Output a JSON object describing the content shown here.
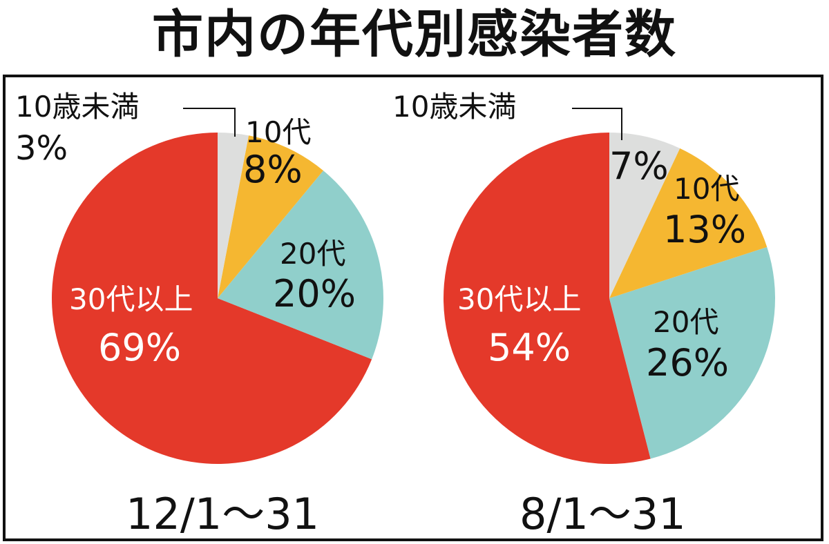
{
  "title": "市内の年代別感染者数",
  "colors": {
    "under10": "#dddedd",
    "teens": "#f5b731",
    "twenties": "#90cfcb",
    "thirties_plus": "#e4392a"
  },
  "chart_data": [
    {
      "type": "pie",
      "title": "12/1〜31",
      "categories": [
        "10歳未満",
        "10代",
        "20代",
        "30代以上"
      ],
      "values": [
        3,
        8,
        20,
        69
      ],
      "labels": [
        "3%",
        "8%",
        "20%",
        "69%"
      ],
      "start": "top",
      "direction": "clockwise"
    },
    {
      "type": "pie",
      "title": "8/1〜31",
      "categories": [
        "10歳未満",
        "10代",
        "20代",
        "30代以上"
      ],
      "values": [
        7,
        13,
        26,
        54
      ],
      "labels": [
        "7%",
        "13%",
        "26%",
        "54%"
      ],
      "start": "top",
      "direction": "clockwise"
    }
  ]
}
